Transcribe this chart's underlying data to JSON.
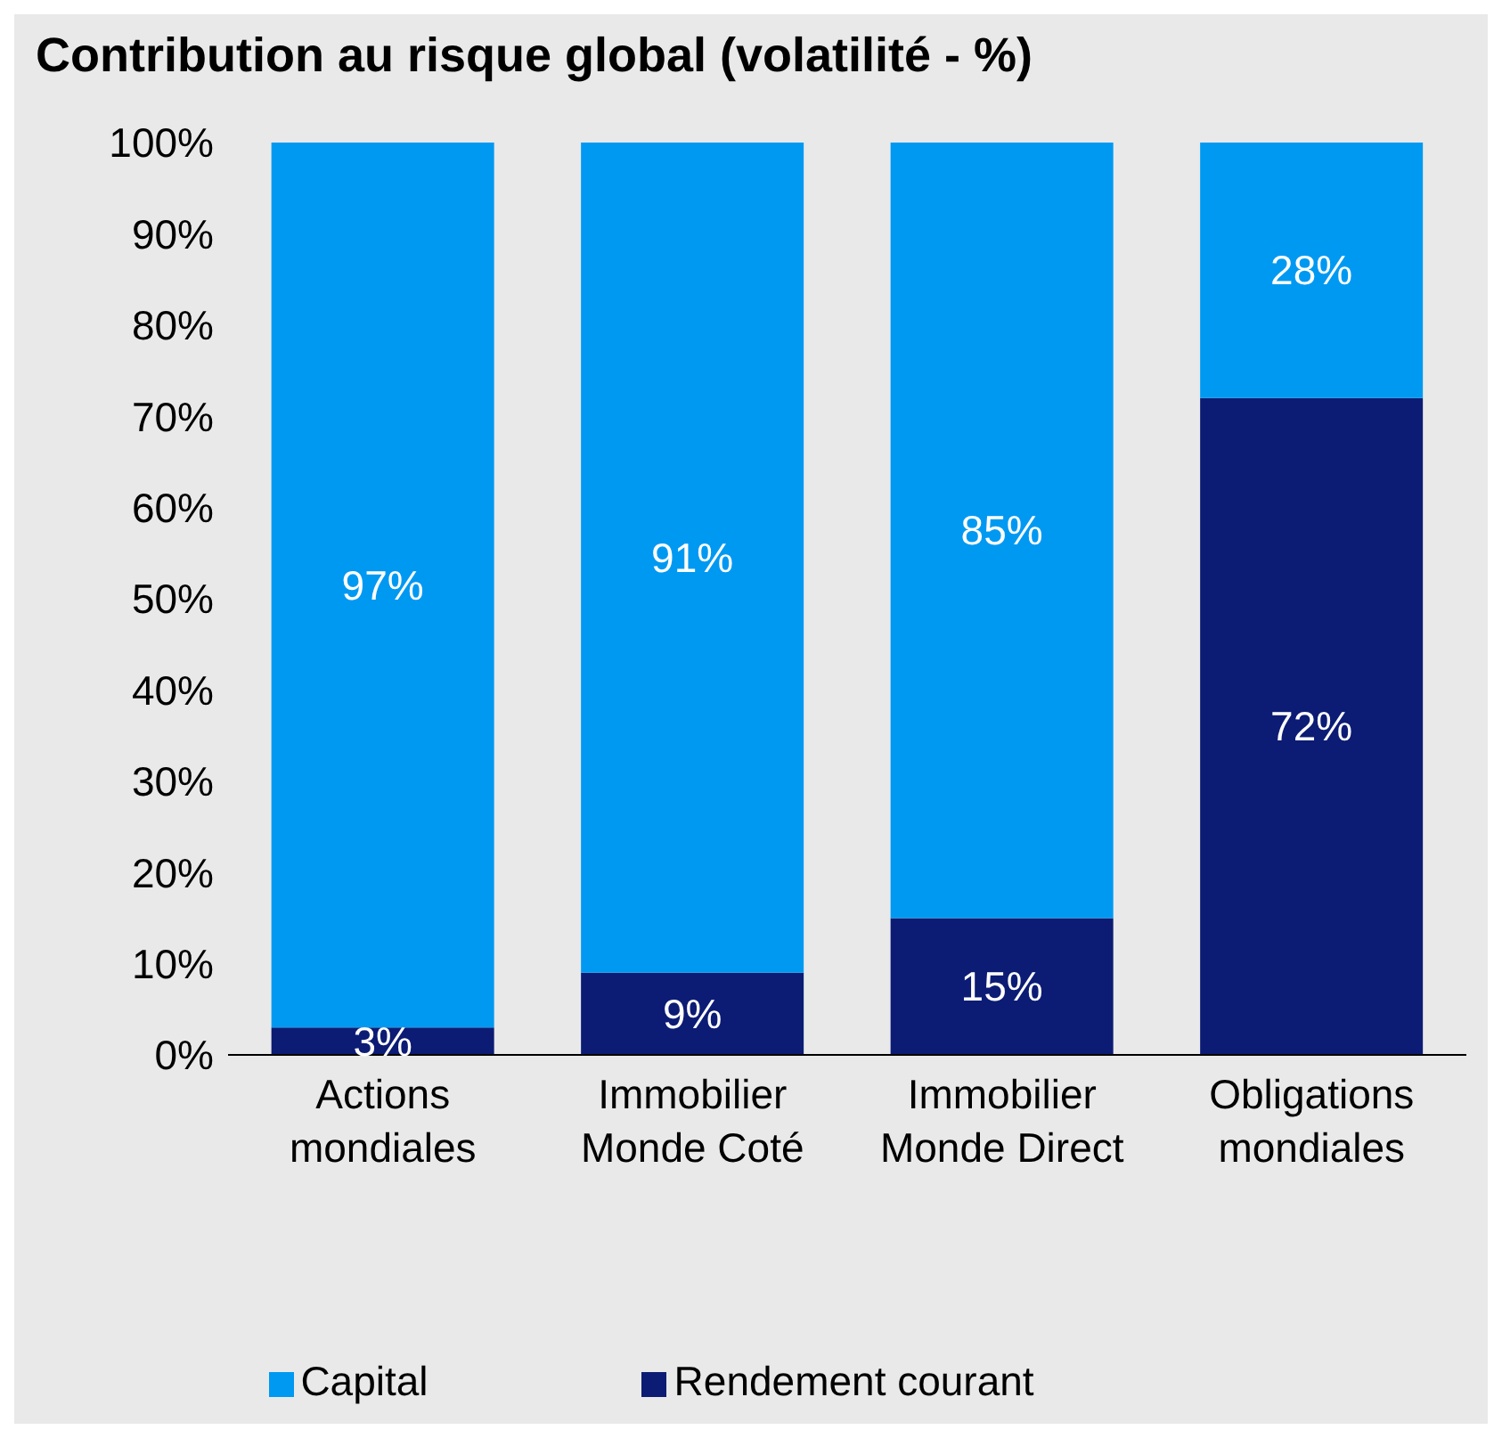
{
  "chart_data": {
    "type": "bar",
    "title": "Contribution au risque global (volatilité - %)",
    "stacked": true,
    "categories": [
      "Actions\nmondiales",
      "Immobilier\nMonde Coté",
      "Immobilier\nMonde Direct",
      "Obligations\nmondiales"
    ],
    "series": [
      {
        "name": "Rendement courant",
        "color": "#0c1c74",
        "values": [
          3,
          9,
          15,
          72
        ],
        "value_labels": [
          "3%",
          "9%",
          "15%",
          "72%"
        ]
      },
      {
        "name": "Capital",
        "color": "#0099f2",
        "values": [
          97,
          91,
          85,
          28
        ],
        "value_labels": [
          "97%",
          "91%",
          "85%",
          "28%"
        ]
      }
    ],
    "ylim": [
      0,
      100
    ],
    "yticks": [
      {
        "value": 0,
        "label": "0%"
      },
      {
        "value": 10,
        "label": "10%"
      },
      {
        "value": 20,
        "label": "20%"
      },
      {
        "value": 30,
        "label": "30%"
      },
      {
        "value": 40,
        "label": "40%"
      },
      {
        "value": 50,
        "label": "50%"
      },
      {
        "value": 60,
        "label": "60%"
      },
      {
        "value": 70,
        "label": "70%"
      },
      {
        "value": 80,
        "label": "80%"
      },
      {
        "value": 90,
        "label": "90%"
      },
      {
        "value": 100,
        "label": "100%"
      }
    ],
    "grid": false,
    "legend": "bottom"
  }
}
